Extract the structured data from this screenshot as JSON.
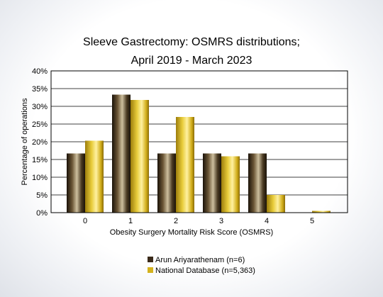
{
  "chart_data": {
    "type": "bar",
    "title_line1": "Sleeve Gastrectomy: OSMRS distributions;",
    "title_line2": "April 2019 - March 2023",
    "xlabel": "Obesity Surgery Mortality Risk Score (OSMRS)",
    "ylabel": "Percentage of operations",
    "categories": [
      "0",
      "1",
      "2",
      "3",
      "4",
      "5"
    ],
    "ylim": [
      0,
      40
    ],
    "yticks": [
      "0%",
      "5%",
      "10%",
      "15%",
      "20%",
      "25%",
      "30%",
      "35%",
      "40%"
    ],
    "grid": true,
    "legend_position": "bottom",
    "series": [
      {
        "name": "Arun Ariyarathenam (n=6)",
        "values": [
          16.7,
          33.3,
          16.7,
          16.7,
          16.7,
          0.0
        ],
        "color": "#3a2a1a"
      },
      {
        "name": "National Database (n=5,363)",
        "values": [
          20.3,
          31.8,
          27.0,
          15.9,
          5.0,
          0.5
        ],
        "color": "#d4b21e"
      }
    ]
  }
}
